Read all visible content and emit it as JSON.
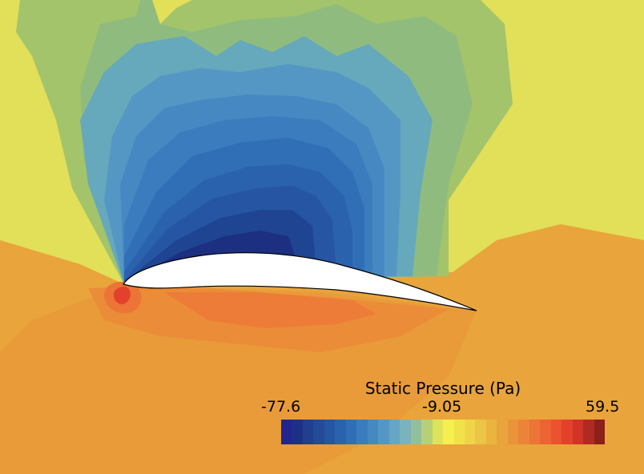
{
  "legend": {
    "title": "Static Pressure (Pa)",
    "min_label": "-77.6",
    "mid_label": "-9.05",
    "max_label": "59.5",
    "min": -77.6,
    "max": 59.5
  },
  "colormap": [
    "#21268e",
    "#1d3087",
    "#213e8f",
    "#244a98",
    "#2656a3",
    "#2a62ad",
    "#306fb6",
    "#3a7cbd",
    "#4689c2",
    "#5597c4",
    "#66a5c4",
    "#7bb3bd",
    "#92c09b",
    "#b6d07a",
    "#dfe35c",
    "#f5ef4f",
    "#f2e24a",
    "#efd448",
    "#ecc544",
    "#eab43f",
    "#e9a43c",
    "#ea943a",
    "#eb8438",
    "#ec7436",
    "#ed6433",
    "#ea5230",
    "#e3412c",
    "#d23327",
    "#b02a22",
    "#8b1f19"
  ],
  "airfoil_color": "#ffffff",
  "background_color": "#e9a43c"
}
